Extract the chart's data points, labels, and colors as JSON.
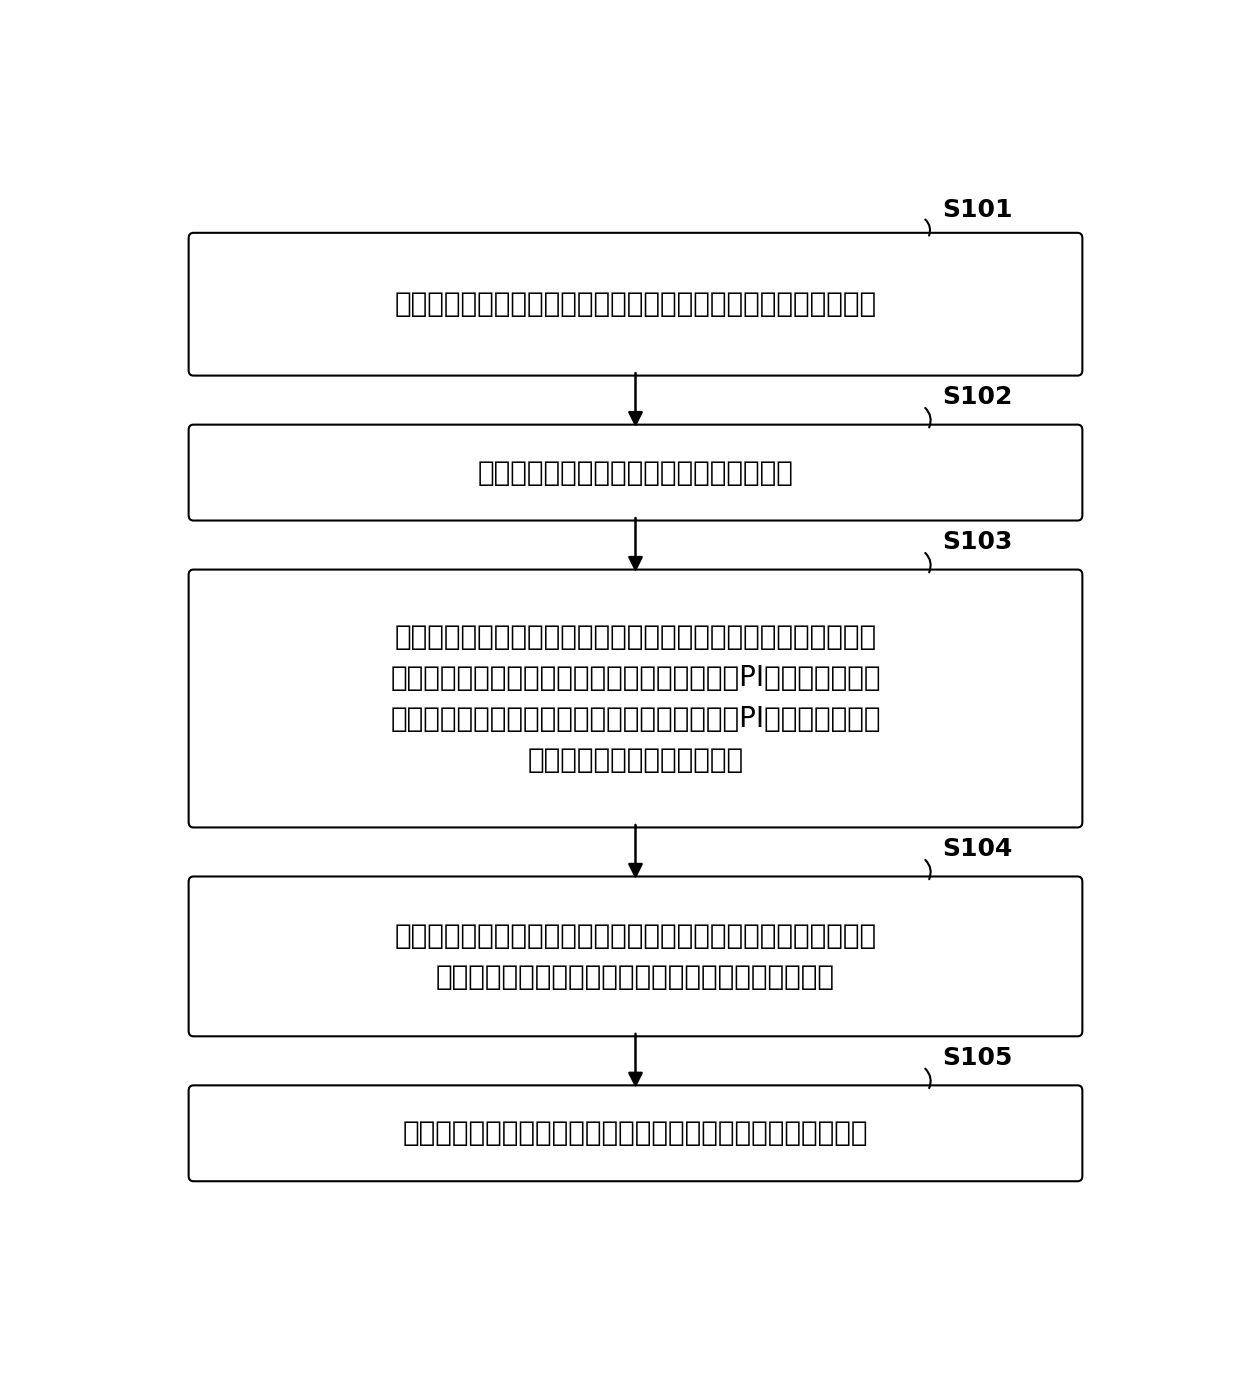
{
  "background_color": "#ffffff",
  "box_border_color": "#000000",
  "box_fill_color": "#ffffff",
  "text_color": "#000000",
  "arrow_color": "#000000",
  "label_color": "#000000",
  "steps": [
    {
      "label": "S101",
      "text": "获取电网中一次调频不合格时段的机组系统及机组系统的运行状态",
      "lines": [
        "获取电网中一次调频不合格时段的机组系统及机组系统的运行状态"
      ]
    },
    {
      "label": "S102",
      "text": "从所述机组系统的运行状态中获取机组转速",
      "lines": [
        "从所述机组系统的运行状态中获取机组转速"
      ]
    },
    {
      "label": "S103",
      "text": "根据所述机组系统及所述机组系统的运行状态，计算得到实测参数\n，所述实测参数包括汽轮机模型的特征参数值、PI控制器的参数值\n、频差值、负荷延迟参数值、调频指令延迟值、PI控制器输出速率\n限制值和压力拉回回路参数值",
      "lines": [
        "根据所述机组系统及所述机组系统的运行状态，计算得到实测参数",
        "，所述实测参数包括汽轮机模型的特征参数值、PI控制器的参数值",
        "、频差值、负荷延迟参数值、调频指令延迟值、PI控制器输出速率",
        "限制值和压力拉回回路参数值"
      ]
    },
    {
      "label": "S104",
      "text": "将所述实测参数在预设范围内的不同取值和所述机组转速输入到所\n述电网的实测模型，得到所述实测模型输出的仿真结果",
      "lines": [
        "将所述实测参数在预设范围内的不同取值和所述机组转速输入到所",
        "述电网的实测模型，得到所述实测模型输出的仿真结果"
      ]
    },
    {
      "label": "S105",
      "text": "根据一次调频性能反映函数和所述仿真结果，优化所述一次调频",
      "lines": [
        "根据一次调频性能反映函数和所述仿真结果，优化所述一次调频"
      ]
    }
  ],
  "fig_width": 12.4,
  "fig_height": 13.81,
  "font_size_main": 20,
  "font_size_label": 18
}
